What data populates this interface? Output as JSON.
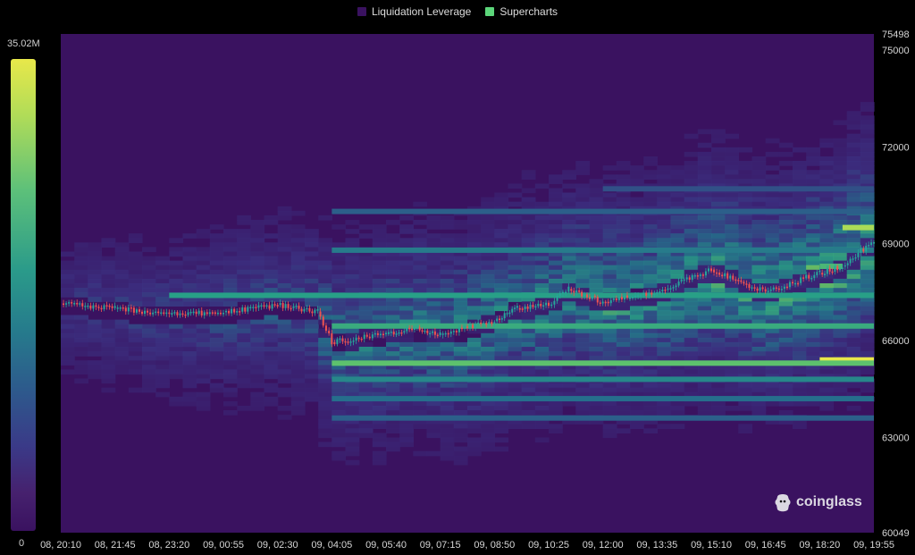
{
  "legend": [
    {
      "label": "Liquidation Leverage",
      "color": "#3a1260"
    },
    {
      "label": "Supercharts",
      "color": "#5cd67a"
    }
  ],
  "colorbar": {
    "max_label": "35.02M",
    "min_label": "0"
  },
  "watermark": {
    "text": "coinglass"
  },
  "chart_data": {
    "type": "heatmap",
    "title": "",
    "xlabel": "",
    "ylabel": "",
    "x_ticks": [
      "08, 20:10",
      "08, 21:45",
      "08, 23:20",
      "09, 00:55",
      "09, 02:30",
      "09, 04:05",
      "09, 05:40",
      "09, 07:15",
      "09, 08:50",
      "09, 10:25",
      "09, 12:00",
      "09, 13:35",
      "09, 15:10",
      "09, 16:45",
      "09, 18:20",
      "09, 19:55"
    ],
    "y_ticks": [
      75498,
      75000,
      72000,
      69000,
      66000,
      63000,
      60049
    ],
    "ylim": [
      60049,
      75498
    ],
    "colorscale": {
      "min": 0,
      "max": 35020000,
      "unit": "USD"
    },
    "price_series": {
      "name": "Supercharts",
      "x": [
        "08, 20:10",
        "08, 21:45",
        "08, 23:20",
        "09, 00:55",
        "09, 02:30",
        "09, 03:40",
        "09, 04:05",
        "09, 05:40",
        "09, 06:30",
        "09, 07:15",
        "09, 08:50",
        "09, 09:30",
        "09, 10:25",
        "09, 11:00",
        "09, 12:00",
        "09, 13:35",
        "09, 15:10",
        "09, 16:45",
        "09, 18:20",
        "09, 19:00",
        "09, 19:55"
      ],
      "y": [
        67150,
        67000,
        66800,
        66900,
        67100,
        66900,
        65950,
        66200,
        66400,
        66200,
        66600,
        67000,
        67100,
        67600,
        67200,
        67500,
        68200,
        67500,
        68100,
        68300,
        69100
      ]
    },
    "bands": [
      {
        "price": 69500,
        "level": 0.9,
        "from": "09, 19:00",
        "to": "09, 19:55"
      },
      {
        "price": 68300,
        "level": 0.7,
        "from": "09, 18:20",
        "to": "09, 19:00"
      },
      {
        "price": 67400,
        "level": 0.6,
        "from": "08, 23:20",
        "to": "09, 19:55"
      },
      {
        "price": 66450,
        "level": 0.65,
        "from": "09, 04:05",
        "to": "09, 19:55"
      },
      {
        "price": 65400,
        "level": 1.0,
        "from": "09, 18:20",
        "to": "09, 19:55"
      },
      {
        "price": 65300,
        "level": 0.75,
        "from": "09, 04:05",
        "to": "09, 19:55"
      },
      {
        "price": 64800,
        "level": 0.5,
        "from": "09, 04:05",
        "to": "09, 19:55"
      },
      {
        "price": 64200,
        "level": 0.4,
        "from": "09, 04:05",
        "to": "09, 19:55"
      },
      {
        "price": 63600,
        "level": 0.35,
        "from": "09, 04:05",
        "to": "09, 19:55"
      },
      {
        "price": 68800,
        "level": 0.45,
        "from": "09, 04:05",
        "to": "09, 19:55"
      },
      {
        "price": 70000,
        "level": 0.35,
        "from": "09, 04:05",
        "to": "09, 19:55"
      },
      {
        "price": 70700,
        "level": 0.3,
        "from": "09, 12:00",
        "to": "09, 19:55"
      }
    ]
  },
  "colors": {
    "background": "#3a1260",
    "up_candle": "#26a69a",
    "down_candle": "#ef5350"
  }
}
